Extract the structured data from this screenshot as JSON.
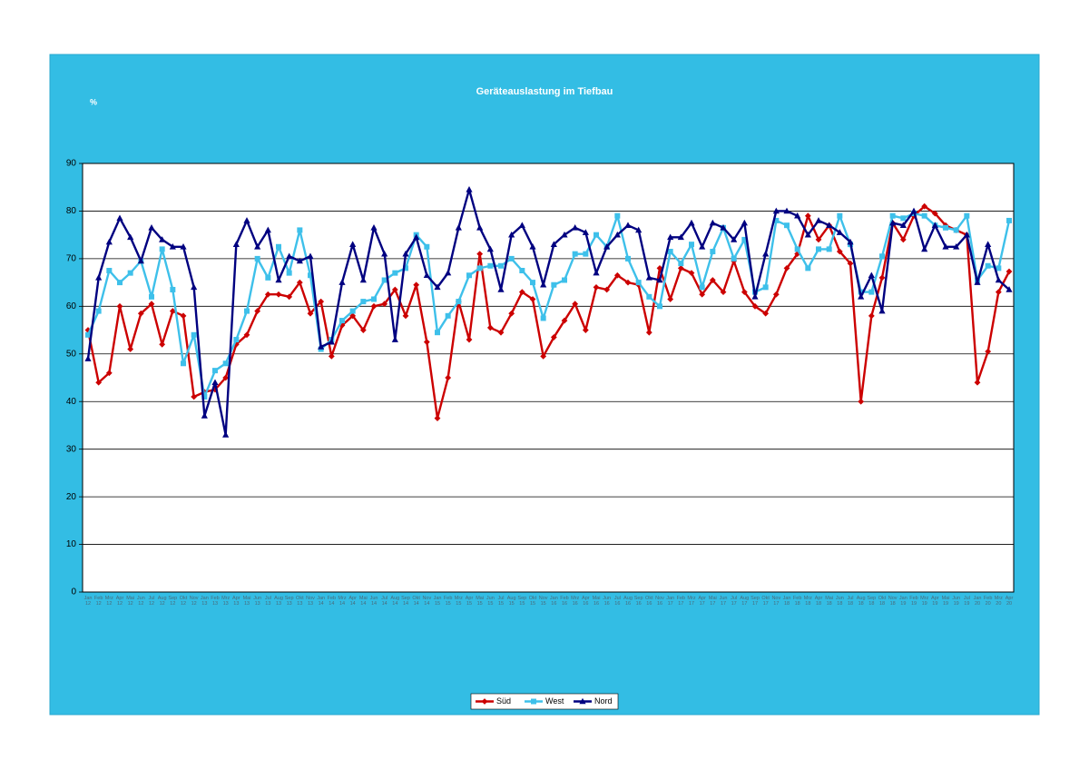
{
  "chart_data": {
    "type": "line",
    "title": "Geräteauslastung im Tiefbau",
    "y_label": "%",
    "categories": [
      "Jan 12",
      "Feb 12",
      "Mrz 12",
      "Apr 12",
      "Mai 12",
      "Jun 12",
      "Jul 12",
      "Aug 12",
      "Sep 12",
      "Okt 12",
      "Nov 12",
      "Jan 13",
      "Feb 13",
      "Mrz 13",
      "Apr 13",
      "Mai 13",
      "Jun 13",
      "Jul 13",
      "Aug 13",
      "Sep 13",
      "Okt 13",
      "Nov 13",
      "Jan 14",
      "Feb 14",
      "Mrz 14",
      "Apr 14",
      "Mai 14",
      "Jun 14",
      "Jul 14",
      "Aug 14",
      "Sep 14",
      "Okt 14",
      "Nov 14",
      "Jan 15",
      "Feb 15",
      "Mrz 15",
      "Apr 15",
      "Mai 15",
      "Jun 15",
      "Jul 15",
      "Aug 15",
      "Sep 15",
      "Okt 15",
      "Nov 15",
      "Jan 16",
      "Feb 16",
      "Mrz 16",
      "Apr 16",
      "Mai 16",
      "Jun 16",
      "Jul 16",
      "Aug 16",
      "Sep 16",
      "Okt 16",
      "Nov 16",
      "Jan 17",
      "Feb 17",
      "Mrz 17",
      "Apr 17",
      "Mai 17",
      "Jun 17",
      "Jul 17",
      "Aug 17",
      "Sep 17",
      "Okt 17",
      "Nov 17",
      "Jan 18",
      "Feb 18",
      "Mrz 18",
      "Apr 18",
      "Mai 18",
      "Jun 18",
      "Jul 18",
      "Aug 18",
      "Sep 18",
      "Okt 18",
      "Nov 18",
      "Jan 19",
      "Feb 19",
      "Mrz 19",
      "Apr 19",
      "Mai 19",
      "Jun 19",
      "Jul 19",
      "Jan 20",
      "Feb 20",
      "Mrz 20",
      "Apr 20"
    ],
    "series": [
      {
        "name": "Süd",
        "color": "#cc0000",
        "marker": "diamond",
        "values": [
          55,
          44,
          46,
          60,
          51,
          58.5,
          60.5,
          52,
          59,
          58,
          41,
          42,
          42.5,
          45,
          52,
          54,
          59,
          62.5,
          62.5,
          62,
          65,
          58.5,
          61,
          49.5,
          56,
          58,
          55,
          60,
          60.5,
          63.5,
          58,
          64.5,
          52.5,
          36.5,
          45,
          61,
          53,
          71,
          55.5,
          54.5,
          58.5,
          63,
          61.5,
          49.5,
          53.5,
          57,
          60.5,
          55,
          64,
          63.5,
          66.5,
          65,
          64.5,
          54.5,
          68,
          61.5,
          68,
          67,
          62.5,
          65.5,
          63,
          69.5,
          63,
          60,
          58.5,
          62.5,
          68,
          71,
          79,
          74,
          77,
          71.5,
          69,
          40,
          58,
          66,
          77.5,
          74,
          79,
          81,
          79.5,
          77,
          76,
          75,
          44,
          50.5,
          63,
          67.3
        ]
      },
      {
        "name": "West",
        "color": "#3ec0ea",
        "marker": "square",
        "values": [
          54,
          59,
          67.5,
          65,
          67,
          69.5,
          62,
          72,
          63.5,
          48,
          54,
          41,
          46.5,
          48,
          53,
          59,
          70,
          66,
          72.5,
          67,
          76,
          66.5,
          51,
          53,
          57,
          59,
          61,
          61.5,
          65.5,
          67,
          68,
          75,
          72.5,
          54.5,
          58,
          61,
          66.5,
          68,
          68.5,
          68.5,
          70,
          67.5,
          65,
          57.5,
          64.5,
          65.5,
          71,
          71,
          75,
          72.5,
          79,
          70,
          65,
          62,
          60,
          71.5,
          69,
          73,
          64,
          71.5,
          76.5,
          70,
          74,
          63,
          64,
          78,
          77,
          72,
          68,
          72,
          72,
          79,
          73,
          63,
          63,
          70.5,
          79,
          78.5,
          79.5,
          79,
          77,
          76.5,
          76,
          79,
          65.5,
          68.5,
          68,
          78
        ]
      },
      {
        "name": "Nord",
        "color": "#000080",
        "marker": "triangle",
        "values": [
          49,
          66,
          73.5,
          78.5,
          74.5,
          69.5,
          76.5,
          74,
          72.5,
          72.5,
          64,
          37,
          44,
          33,
          73,
          78,
          72.5,
          76,
          65.5,
          70.5,
          69.5,
          70.5,
          51.5,
          52.5,
          65,
          73,
          65.5,
          76.5,
          71,
          53,
          71,
          74.5,
          66.5,
          64,
          67,
          76.5,
          84.5,
          76.5,
          72,
          63.5,
          75,
          77,
          72.5,
          64.5,
          73,
          75,
          76.5,
          75.5,
          67,
          72.5,
          75,
          77,
          76,
          66,
          65.5,
          74.5,
          74.5,
          77.5,
          72.5,
          77.5,
          76.5,
          74,
          77.5,
          62,
          71,
          80,
          80,
          79,
          75,
          78,
          77,
          75.5,
          73.5,
          62,
          66.5,
          59,
          77.5,
          77,
          80,
          72,
          77,
          72.5,
          72.5,
          75,
          65,
          73,
          65.5,
          63.5
        ]
      }
    ],
    "ylim": [
      0,
      90
    ],
    "yticks": [
      0,
      10,
      20,
      30,
      40,
      50,
      60,
      70,
      80,
      90
    ],
    "grid": true,
    "legend": "bottom"
  }
}
